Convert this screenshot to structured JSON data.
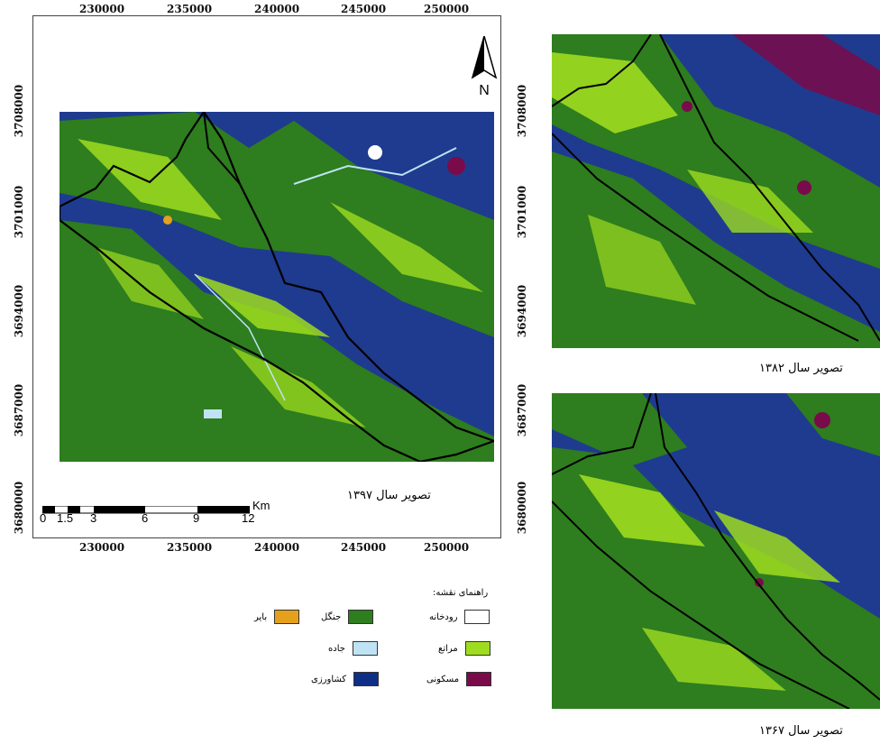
{
  "main_map": {
    "x_ticks": [
      "230000",
      "235000",
      "240000",
      "245000",
      "250000"
    ],
    "y_ticks": [
      "3708000",
      "3701000",
      "3694000",
      "3687000",
      "3680000"
    ],
    "north_label": "N",
    "caption": "تصویر سال ۱۳۹۷",
    "scale_bar": {
      "labels": [
        "0",
        "1.5",
        "3",
        "6",
        "9",
        "12"
      ],
      "unit": "Km"
    }
  },
  "inset_maps": {
    "y_ticks": [
      "3708000",
      "3701000",
      "3694000",
      "3687000",
      "3680000"
    ],
    "top_caption": "تصویر سال ۱۳۸۲",
    "bottom_caption": "تصویر سال ۱۳۶۷"
  },
  "legend": {
    "title": "راهنمای نقشه:",
    "items": [
      {
        "label": "رودخانه",
        "color": "#ffffff"
      },
      {
        "label": "جنگل",
        "color": "#2e7d1e"
      },
      {
        "label": "بایر",
        "color": "#e5a11c"
      },
      {
        "label": "مراتع",
        "color": "#9edc1f"
      },
      {
        "label": "جاده",
        "color": "#bfe3f5"
      },
      {
        "label": "مسکونی",
        "color": "#7a0b4a"
      },
      {
        "label": "کشاورزی",
        "color": "#0f2e86"
      }
    ]
  },
  "colors": {
    "forest": "#2e7d1e",
    "rangeland": "#9edc1f",
    "agriculture": "#0f2e86",
    "residential": "#7a0b4a",
    "boundary": "#000000"
  }
}
